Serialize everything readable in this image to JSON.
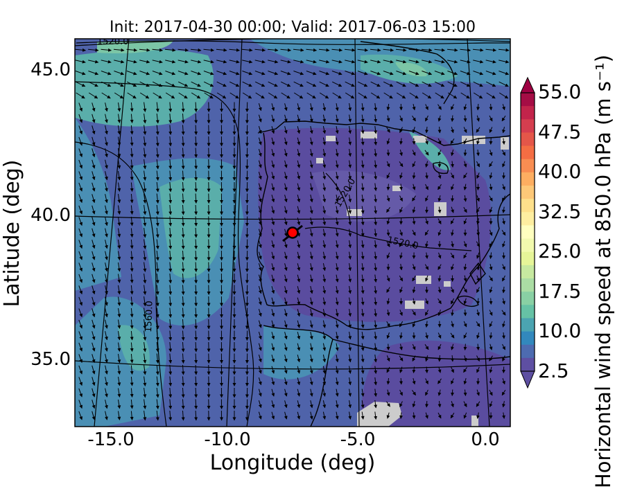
{
  "map": {
    "title": "Init: 2017-04-30 00:00; Valid: 2017-06-03 15:00",
    "xlabel": "Longitude (deg)",
    "ylabel": "Latitude (deg)",
    "x_ticks": [
      "-15.0",
      "-10.0",
      "-5.0",
      "0.0"
    ],
    "y_ticks": [
      "45.0",
      "40.0",
      "35.0"
    ],
    "contour_labels": [
      "1520.0",
      "1520.0",
      "1520.0",
      "1560.0"
    ],
    "marker": "station-point"
  },
  "colorbar": {
    "label": "Horizontal wind speed at 850.0 hPa (m s⁻¹)",
    "ticks": [
      "55.0",
      "47.5",
      "40.0",
      "32.5",
      "25.0",
      "17.5",
      "10.0",
      "2.5"
    ],
    "colors": [
      "#a50d45",
      "#c2244b",
      "#d53e4f",
      "#e45649",
      "#f46d43",
      "#f88d52",
      "#fdae61",
      "#fdc878",
      "#fee08b",
      "#feeea0",
      "#ffffbf",
      "#f2faae",
      "#e6f598",
      "#c7e9a0",
      "#abdda4",
      "#89d0a4",
      "#66c2a5",
      "#4ba4b1",
      "#3288bd",
      "#4d6bb0",
      "#5e4fa2"
    ],
    "extend": "both"
  },
  "chart_data": {
    "type": "heatmap",
    "title": "Init: 2017-04-30 00:00; Valid: 2017-06-03 15:00",
    "xlabel": "Longitude (deg)",
    "ylabel": "Latitude (deg)",
    "xlim": [
      -16,
      0.3
    ],
    "ylim": [
      32.8,
      46
    ],
    "colorbar_range": [
      2.5,
      55.0
    ],
    "region": "Iberian Peninsula",
    "overlays": [
      "wind vectors",
      "geopotential height contours",
      "coastlines"
    ]
  }
}
